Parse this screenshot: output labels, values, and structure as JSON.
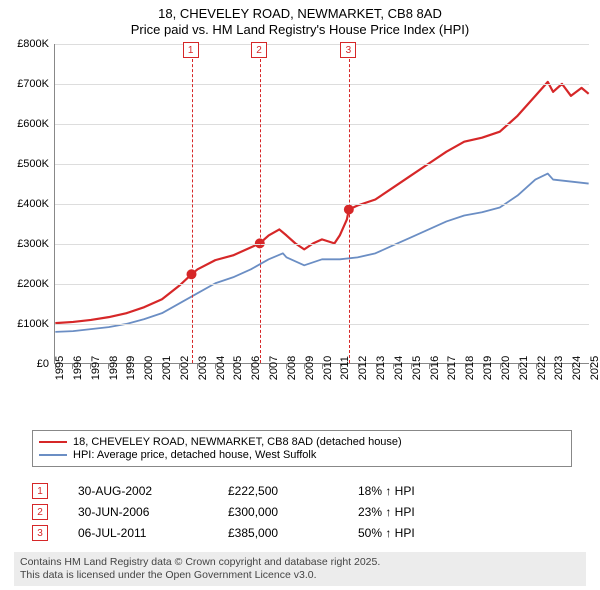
{
  "title": {
    "line1": "18, CHEVELEY ROAD, NEWMARKET, CB8 8AD",
    "line2": "Price paid vs. HM Land Registry's House Price Index (HPI)"
  },
  "chart": {
    "type": "line",
    "background_color": "#ffffff",
    "grid_color": "#dddddd",
    "axis_color": "#888888",
    "fontsize_ticks": 11,
    "x": {
      "min": 1995,
      "max": 2025,
      "ticks": [
        1995,
        1996,
        1997,
        1998,
        1999,
        2000,
        2001,
        2002,
        2003,
        2004,
        2005,
        2006,
        2007,
        2008,
        2009,
        2010,
        2011,
        2012,
        2013,
        2014,
        2015,
        2016,
        2017,
        2018,
        2019,
        2020,
        2021,
        2022,
        2023,
        2024,
        2025
      ]
    },
    "y": {
      "min": 0,
      "max": 800000,
      "ticks": [
        0,
        100000,
        200000,
        300000,
        400000,
        500000,
        600000,
        700000,
        800000
      ],
      "tick_labels": [
        "£0",
        "£100K",
        "£200K",
        "£300K",
        "£400K",
        "£500K",
        "£600K",
        "£700K",
        "£800K"
      ]
    },
    "series": [
      {
        "name": "18, CHEVELEY ROAD, NEWMARKET, CB8 8AD (detached house)",
        "color": "#d62728",
        "line_width": 2.2,
        "markers": [
          {
            "x": 2002.66,
            "y": 222500
          },
          {
            "x": 2006.5,
            "y": 300000
          },
          {
            "x": 2011.51,
            "y": 385000
          }
        ],
        "marker_style": "circle",
        "marker_size": 5,
        "points": [
          [
            1995,
            100000
          ],
          [
            1996,
            103000
          ],
          [
            1997,
            108000
          ],
          [
            1998,
            115000
          ],
          [
            1999,
            125000
          ],
          [
            2000,
            140000
          ],
          [
            2001,
            160000
          ],
          [
            2002,
            195000
          ],
          [
            2002.66,
            222500
          ],
          [
            2003,
            235000
          ],
          [
            2004,
            258000
          ],
          [
            2005,
            270000
          ],
          [
            2006,
            290000
          ],
          [
            2006.5,
            300000
          ],
          [
            2007,
            320000
          ],
          [
            2007.6,
            335000
          ],
          [
            2008,
            320000
          ],
          [
            2008.5,
            300000
          ],
          [
            2009,
            285000
          ],
          [
            2009.5,
            300000
          ],
          [
            2010,
            310000
          ],
          [
            2010.7,
            300000
          ],
          [
            2011,
            320000
          ],
          [
            2011.4,
            360000
          ],
          [
            2011.51,
            385000
          ],
          [
            2012,
            395000
          ],
          [
            2013,
            410000
          ],
          [
            2014,
            440000
          ],
          [
            2015,
            470000
          ],
          [
            2016,
            500000
          ],
          [
            2017,
            530000
          ],
          [
            2018,
            555000
          ],
          [
            2019,
            565000
          ],
          [
            2020,
            580000
          ],
          [
            2021,
            620000
          ],
          [
            2022,
            670000
          ],
          [
            2022.7,
            705000
          ],
          [
            2023,
            680000
          ],
          [
            2023.5,
            700000
          ],
          [
            2024,
            670000
          ],
          [
            2024.6,
            690000
          ],
          [
            2025,
            675000
          ]
        ]
      },
      {
        "name": "HPI: Average price, detached house, West Suffolk",
        "color": "#6b8ec4",
        "line_width": 1.8,
        "points": [
          [
            1995,
            78000
          ],
          [
            1996,
            80000
          ],
          [
            1997,
            85000
          ],
          [
            1998,
            90000
          ],
          [
            1999,
            98000
          ],
          [
            2000,
            110000
          ],
          [
            2001,
            125000
          ],
          [
            2002,
            150000
          ],
          [
            2003,
            175000
          ],
          [
            2004,
            200000
          ],
          [
            2005,
            215000
          ],
          [
            2006,
            235000
          ],
          [
            2007,
            260000
          ],
          [
            2007.8,
            275000
          ],
          [
            2008,
            265000
          ],
          [
            2009,
            245000
          ],
          [
            2010,
            260000
          ],
          [
            2011,
            260000
          ],
          [
            2012,
            265000
          ],
          [
            2013,
            275000
          ],
          [
            2014,
            295000
          ],
          [
            2015,
            315000
          ],
          [
            2016,
            335000
          ],
          [
            2017,
            355000
          ],
          [
            2018,
            370000
          ],
          [
            2019,
            378000
          ],
          [
            2020,
            390000
          ],
          [
            2021,
            420000
          ],
          [
            2022,
            460000
          ],
          [
            2022.7,
            475000
          ],
          [
            2023,
            460000
          ],
          [
            2024,
            455000
          ],
          [
            2025,
            450000
          ]
        ]
      }
    ],
    "events": [
      {
        "n": "1",
        "x": 2002.66,
        "date": "30-AUG-2002",
        "price": "£222,500",
        "pct": "18% ↑ HPI"
      },
      {
        "n": "2",
        "x": 2006.5,
        "date": "30-JUN-2006",
        "price": "£300,000",
        "pct": "23% ↑ HPI"
      },
      {
        "n": "3",
        "x": 2011.51,
        "date": "06-JUL-2011",
        "price": "£385,000",
        "pct": "50% ↑ HPI"
      }
    ]
  },
  "legend": {
    "items": [
      {
        "color": "#d62728",
        "label": "18, CHEVELEY ROAD, NEWMARKET, CB8 8AD (detached house)"
      },
      {
        "color": "#6b8ec4",
        "label": "HPI: Average price, detached house, West Suffolk"
      }
    ]
  },
  "footer": {
    "line1": "Contains HM Land Registry data © Crown copyright and database right 2025.",
    "line2": "This data is licensed under the Open Government Licence v3.0."
  }
}
